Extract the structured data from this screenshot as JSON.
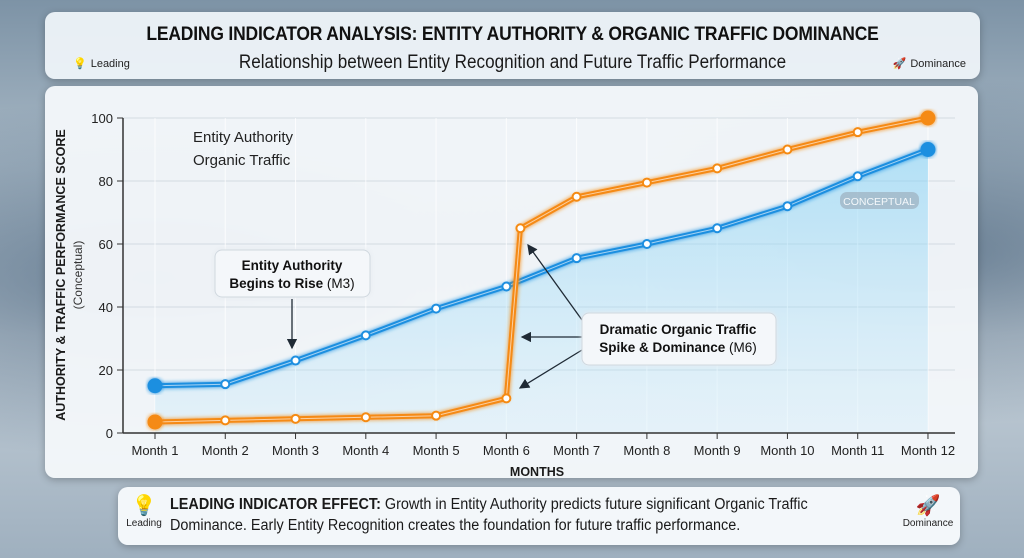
{
  "header": {
    "title": "LEADING INDICATOR ANALYSIS: ENTITY AUTHORITY & ORGANIC TRAFFIC DOMINANCE",
    "subtitle": "Relationship between Entity Recognition and Future Traffic Performance",
    "left_tag": {
      "label": "Leading",
      "icon": "lightbulb-icon"
    },
    "right_tag": {
      "label": "Dominance",
      "icon": "rocket-icon"
    }
  },
  "chart_data": {
    "type": "line",
    "xlabel": "MONTHS",
    "ylabel": "AUTHORITY & TRAFFIC PERFORMANCE SCORE",
    "ylabel_sub": "(Conceptual)",
    "categories": [
      "Month 1",
      "Month 2",
      "Month 3",
      "Month 4",
      "Month 5",
      "Month 6",
      "Month 7",
      "Month 8",
      "Month 9",
      "Month 10",
      "Month 11",
      "Month 12"
    ],
    "ylim": [
      0,
      100
    ],
    "yticks": [
      0,
      20,
      40,
      60,
      80,
      100
    ],
    "grid": true,
    "legend_position": "top-left",
    "series": [
      {
        "name": "Entity Authority",
        "color": "#1e8fe0",
        "x": [
          1,
          2,
          3,
          4,
          5,
          6,
          7,
          8,
          9,
          10,
          11,
          12
        ],
        "values": [
          15,
          15.5,
          23,
          31,
          39.5,
          46.5,
          55.5,
          60,
          65,
          72,
          81.5,
          90
        ],
        "area_fill": true
      },
      {
        "name": "Organic Traffic",
        "color": "#f58a12",
        "x": [
          1,
          2,
          3,
          4,
          5,
          6,
          6.2,
          7,
          8,
          9,
          10,
          11,
          12
        ],
        "values": [
          3.5,
          4,
          4.5,
          5,
          5.5,
          11,
          65,
          75,
          79.5,
          84,
          90,
          95.5,
          100
        ]
      }
    ],
    "annotations": [
      {
        "bold": "Entity Authority Begins to Rise",
        "normal": "(M3)"
      },
      {
        "bold": "Dramatic Organic Traffic Spike & Dominance",
        "normal": "(M6)"
      }
    ],
    "badge": "CONCEPTUAL"
  },
  "effect": {
    "heading": "LEADING INDICATOR EFFECT:",
    "text": "Growth in Entity Authority predicts future significant Organic Traffic Dominance. Early Entity Recognition creates the foundation for future traffic performance.",
    "left_tag": "Leading",
    "right_tag": "Dominance"
  }
}
